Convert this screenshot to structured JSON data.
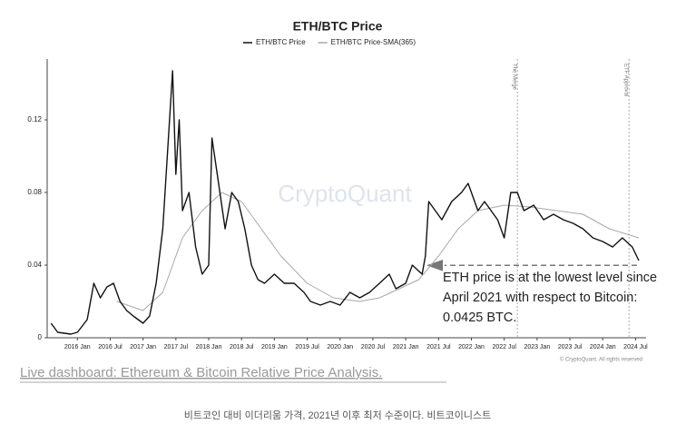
{
  "chart_data": {
    "type": "line",
    "title": "ETH/BTC Price",
    "series": [
      {
        "name": "ETH/BTC Price",
        "color": "#111111",
        "x": [
          2015.6,
          2015.7,
          2015.9,
          2016.0,
          2016.15,
          2016.25,
          2016.35,
          2016.45,
          2016.55,
          2016.65,
          2016.75,
          2016.85,
          2017.0,
          2017.1,
          2017.2,
          2017.3,
          2017.45,
          2017.5,
          2017.55,
          2017.6,
          2017.7,
          2017.8,
          2017.9,
          2018.0,
          2018.05,
          2018.15,
          2018.25,
          2018.35,
          2018.45,
          2018.55,
          2018.65,
          2018.75,
          2018.85,
          2019.0,
          2019.15,
          2019.3,
          2019.45,
          2019.55,
          2019.7,
          2019.85,
          2020.0,
          2020.15,
          2020.3,
          2020.45,
          2020.6,
          2020.75,
          2020.85,
          2021.0,
          2021.1,
          2021.25,
          2021.3,
          2021.35,
          2021.45,
          2021.55,
          2021.7,
          2021.85,
          2021.95,
          2022.1,
          2022.2,
          2022.4,
          2022.5,
          2022.6,
          2022.7,
          2022.8,
          2022.95,
          2023.1,
          2023.25,
          2023.4,
          2023.55,
          2023.7,
          2023.85,
          2024.0,
          2024.15,
          2024.3,
          2024.45,
          2024.55
        ],
        "values": [
          0.008,
          0.003,
          0.002,
          0.003,
          0.01,
          0.03,
          0.022,
          0.028,
          0.03,
          0.02,
          0.015,
          0.012,
          0.008,
          0.012,
          0.03,
          0.06,
          0.147,
          0.09,
          0.12,
          0.07,
          0.08,
          0.05,
          0.035,
          0.04,
          0.11,
          0.085,
          0.06,
          0.08,
          0.075,
          0.06,
          0.04,
          0.032,
          0.03,
          0.035,
          0.03,
          0.03,
          0.025,
          0.02,
          0.018,
          0.02,
          0.018,
          0.025,
          0.022,
          0.025,
          0.03,
          0.035,
          0.027,
          0.03,
          0.04,
          0.035,
          0.045,
          0.075,
          0.07,
          0.065,
          0.075,
          0.08,
          0.085,
          0.07,
          0.075,
          0.065,
          0.055,
          0.08,
          0.08,
          0.07,
          0.073,
          0.065,
          0.068,
          0.065,
          0.063,
          0.06,
          0.055,
          0.053,
          0.05,
          0.055,
          0.05,
          0.0425
        ]
      },
      {
        "name": "ETH/BTC Price-SMA(365)",
        "color": "#a8a8a8",
        "x": [
          2016.6,
          2017.0,
          2017.3,
          2017.6,
          2017.9,
          2018.2,
          2018.5,
          2018.8,
          2019.1,
          2019.5,
          2019.9,
          2020.3,
          2020.6,
          2020.9,
          2021.2,
          2021.5,
          2021.8,
          2022.1,
          2022.5,
          2022.9,
          2023.3,
          2023.7,
          2024.1,
          2024.55
        ],
        "values": [
          0.02,
          0.015,
          0.025,
          0.055,
          0.07,
          0.08,
          0.075,
          0.06,
          0.045,
          0.03,
          0.022,
          0.02,
          0.022,
          0.027,
          0.032,
          0.045,
          0.06,
          0.07,
          0.073,
          0.072,
          0.07,
          0.068,
          0.06,
          0.055
        ]
      }
    ],
    "xlim": [
      2015.54,
      2024.66
    ],
    "ylim": [
      0,
      0.15
    ],
    "yticks": [
      0,
      0.04,
      0.08,
      0.12
    ],
    "xticks": [
      {
        "value": 2016.0,
        "label": "2016 Jan"
      },
      {
        "value": 2016.5,
        "label": "2016 Jul"
      },
      {
        "value": 2017.0,
        "label": "2017 Jan"
      },
      {
        "value": 2017.5,
        "label": "2017 Jul"
      },
      {
        "value": 2018.0,
        "label": "2018 Jan"
      },
      {
        "value": 2018.5,
        "label": "2018 Jul"
      },
      {
        "value": 2019.0,
        "label": "2019 Jan"
      },
      {
        "value": 2019.5,
        "label": "2019 Jul"
      },
      {
        "value": 2020.0,
        "label": "2020 Jan"
      },
      {
        "value": 2020.5,
        "label": "2020 Jul"
      },
      {
        "value": 2021.0,
        "label": "2021 Jan"
      },
      {
        "value": 2021.5,
        "label": "2021 Jul"
      },
      {
        "value": 2022.0,
        "label": "2022 Jan"
      },
      {
        "value": 2022.5,
        "label": "2022 Jul"
      },
      {
        "value": 2023.0,
        "label": "2023 Jan"
      },
      {
        "value": 2023.5,
        "label": "2023 Jul"
      },
      {
        "value": 2024.0,
        "label": "2024 Jan"
      },
      {
        "value": 2024.5,
        "label": "2024 Jul"
      }
    ],
    "vlines": [
      {
        "x": 2022.7,
        "label": "The Merge"
      },
      {
        "x": 2024.4,
        "label": "ETF Approval"
      }
    ],
    "watermark": "CryptoQuant",
    "copyright": "© CryptoQuant. All rights reserved",
    "annotation": [
      "ETH price is at the lowest level since",
      "April 2021 with respect to Bitcoin:",
      "0.0425 BTC."
    ]
  },
  "link": "Live dashboard: Ethereum & Bitcoin Relative Price Analysis.",
  "caption": "비트코인 대비 이더리움 가격, 2021년 이후 최저 수준이다. 비트코이니스트"
}
